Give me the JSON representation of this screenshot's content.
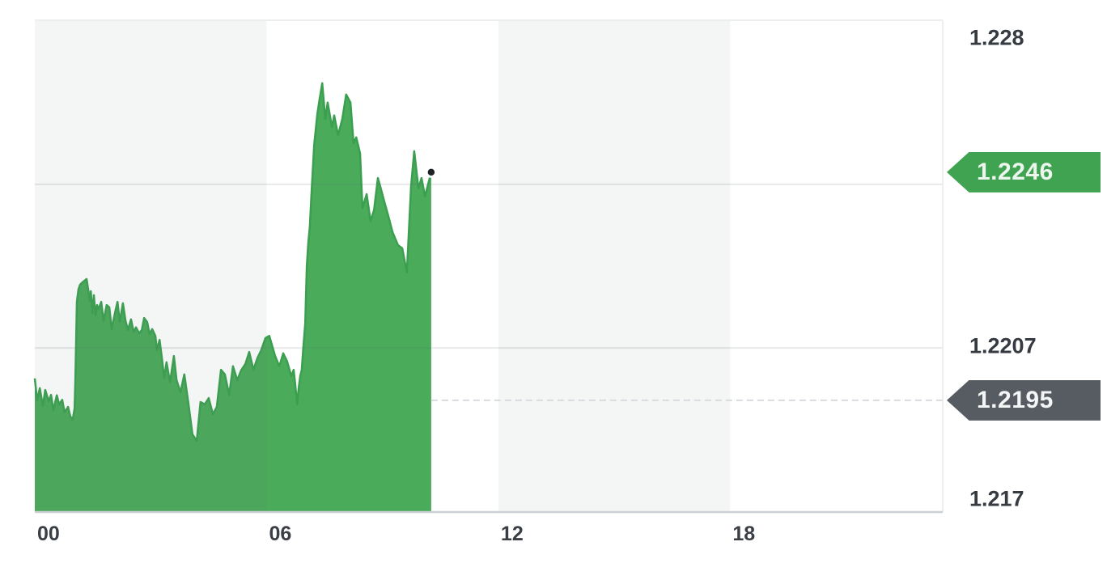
{
  "chart_data": {
    "type": "area",
    "x_axis": {
      "unit": "hour",
      "range_hours": [
        0,
        23.5
      ],
      "ticks": [
        {
          "label": "00",
          "hour": 0
        },
        {
          "label": "06",
          "hour": 6
        },
        {
          "label": "12",
          "hour": 12
        },
        {
          "label": "18",
          "hour": 18
        }
      ],
      "shaded_band_hours": [
        [
          0,
          6
        ],
        [
          12,
          18
        ]
      ]
    },
    "y_axis": {
      "side": "right",
      "range": [
        1.217,
        1.228
      ],
      "tick_labels": [
        {
          "label": "1.228",
          "value": 1.228
        },
        {
          "label": "1.2207",
          "value": 1.2207
        },
        {
          "label": "1.217",
          "value": 1.217
        }
      ],
      "gridline_values": [
        1.228,
        1.22433,
        1.22067,
        1.217
      ]
    },
    "markers": {
      "current_price": {
        "label": "1.2246",
        "value": 1.2246,
        "badge_color": "#3fa351",
        "text_color": "#edf6ee"
      },
      "previous_close": {
        "label": "1.2195",
        "value": 1.2195,
        "badge_color": "#575c63",
        "text_color": "#f4f5f6",
        "line_style": "dashed"
      },
      "last_point": {
        "hour": 10.26,
        "value": 1.2246,
        "dot_color": "#1f2227"
      }
    },
    "series": [
      {
        "name": "price",
        "fill_color": "#4aab5a",
        "line_color": "#3aa04f",
        "points": [
          [
            0,
            1.21999
          ],
          [
            0.06,
            1.2195
          ],
          [
            0.13,
            1.21977
          ],
          [
            0.21,
            1.21937
          ],
          [
            0.27,
            1.21973
          ],
          [
            0.36,
            1.21948
          ],
          [
            0.42,
            1.21962
          ],
          [
            0.48,
            1.21928
          ],
          [
            0.57,
            1.21961
          ],
          [
            0.63,
            1.21941
          ],
          [
            0.71,
            1.21951
          ],
          [
            0.77,
            1.21923
          ],
          [
            0.86,
            1.21935
          ],
          [
            0.92,
            1.21914
          ],
          [
            0.98,
            1.21906
          ],
          [
            1.03,
            1.21932
          ],
          [
            1.05,
            1.21995
          ],
          [
            1.07,
            1.22085
          ],
          [
            1.09,
            1.2217
          ],
          [
            1.13,
            1.22198
          ],
          [
            1.17,
            1.22208
          ],
          [
            1.21,
            1.22212
          ],
          [
            1.28,
            1.22217
          ],
          [
            1.34,
            1.22221
          ],
          [
            1.38,
            1.22199
          ],
          [
            1.42,
            1.22172
          ],
          [
            1.45,
            1.22194
          ],
          [
            1.49,
            1.22145
          ],
          [
            1.53,
            1.22185
          ],
          [
            1.57,
            1.2214
          ],
          [
            1.61,
            1.22163
          ],
          [
            1.65,
            1.22154
          ],
          [
            1.72,
            1.2217
          ],
          [
            1.78,
            1.22127
          ],
          [
            1.86,
            1.22163
          ],
          [
            1.93,
            1.22158
          ],
          [
            1.99,
            1.22109
          ],
          [
            2.07,
            1.22143
          ],
          [
            2.14,
            1.2217
          ],
          [
            2.2,
            1.22125
          ],
          [
            2.28,
            1.22167
          ],
          [
            2.35,
            1.22127
          ],
          [
            2.41,
            1.22107
          ],
          [
            2.49,
            1.22131
          ],
          [
            2.56,
            1.22103
          ],
          [
            2.62,
            1.22113
          ],
          [
            2.7,
            1.221
          ],
          [
            2.77,
            1.22107
          ],
          [
            2.83,
            1.22134
          ],
          [
            2.91,
            1.22125
          ],
          [
            2.97,
            1.22098
          ],
          [
            3.04,
            1.22109
          ],
          [
            3.12,
            1.22094
          ],
          [
            3.16,
            1.22062
          ],
          [
            3.23,
            1.22085
          ],
          [
            3.29,
            1.22044
          ],
          [
            3.35,
            1.22
          ],
          [
            3.41,
            1.22035
          ],
          [
            3.5,
            1.2199
          ],
          [
            3.6,
            1.22049
          ],
          [
            3.67,
            1.21995
          ],
          [
            3.77,
            1.21968
          ],
          [
            3.87,
            1.22008
          ],
          [
            3.98,
            1.21941
          ],
          [
            4.08,
            1.21874
          ],
          [
            4.19,
            1.21859
          ],
          [
            4.29,
            1.21946
          ],
          [
            4.4,
            1.21941
          ],
          [
            4.5,
            1.21955
          ],
          [
            4.61,
            1.21919
          ],
          [
            4.71,
            1.21935
          ],
          [
            4.82,
            1.22018
          ],
          [
            4.92,
            1.22008
          ],
          [
            5.03,
            1.21962
          ],
          [
            5.13,
            1.22026
          ],
          [
            5.24,
            1.21995
          ],
          [
            5.34,
            1.22017
          ],
          [
            5.45,
            1.22031
          ],
          [
            5.55,
            1.22058
          ],
          [
            5.66,
            1.22018
          ],
          [
            5.76,
            1.22044
          ],
          [
            5.86,
            1.22062
          ],
          [
            5.97,
            1.22089
          ],
          [
            6.07,
            1.22094
          ],
          [
            6.22,
            1.22049
          ],
          [
            6.33,
            1.22026
          ],
          [
            6.43,
            1.22055
          ],
          [
            6.53,
            1.22037
          ],
          [
            6.64,
            1.22004
          ],
          [
            6.7,
            1.22018
          ],
          [
            6.74,
            1.21986
          ],
          [
            6.79,
            1.21941
          ],
          [
            6.83,
            1.21977
          ],
          [
            6.87,
            1.22004
          ],
          [
            6.91,
            1.22018
          ],
          [
            6.95,
            1.22067
          ],
          [
            7,
            1.22122
          ],
          [
            7.04,
            1.22248
          ],
          [
            7.08,
            1.22303
          ],
          [
            7.12,
            1.22339
          ],
          [
            7.16,
            1.22411
          ],
          [
            7.23,
            1.2252
          ],
          [
            7.31,
            1.22588
          ],
          [
            7.37,
            1.22623
          ],
          [
            7.44,
            1.22659
          ],
          [
            7.52,
            1.22579
          ],
          [
            7.58,
            1.22616
          ],
          [
            7.69,
            1.22561
          ],
          [
            7.75,
            1.22587
          ],
          [
            7.85,
            1.22543
          ],
          [
            7.96,
            1.22579
          ],
          [
            8.06,
            1.22634
          ],
          [
            8.17,
            1.22616
          ],
          [
            8.25,
            1.22525
          ],
          [
            8.32,
            1.22538
          ],
          [
            8.42,
            1.22502
          ],
          [
            8.48,
            1.2238
          ],
          [
            8.59,
            1.22411
          ],
          [
            8.69,
            1.22351
          ],
          [
            8.78,
            1.22375
          ],
          [
            8.88,
            1.22447
          ],
          [
            8.94,
            1.22429
          ],
          [
            9.05,
            1.22393
          ],
          [
            9.15,
            1.22362
          ],
          [
            9.26,
            1.22326
          ],
          [
            9.4,
            1.22297
          ],
          [
            9.51,
            1.2229
          ],
          [
            9.63,
            1.22236
          ],
          [
            9.74,
            1.22429
          ],
          [
            9.82,
            1.22507
          ],
          [
            9.93,
            1.22424
          ],
          [
            10.01,
            1.22447
          ],
          [
            10.1,
            1.22406
          ],
          [
            10.18,
            1.22433
          ],
          [
            10.26,
            1.2246
          ]
        ]
      }
    ]
  }
}
